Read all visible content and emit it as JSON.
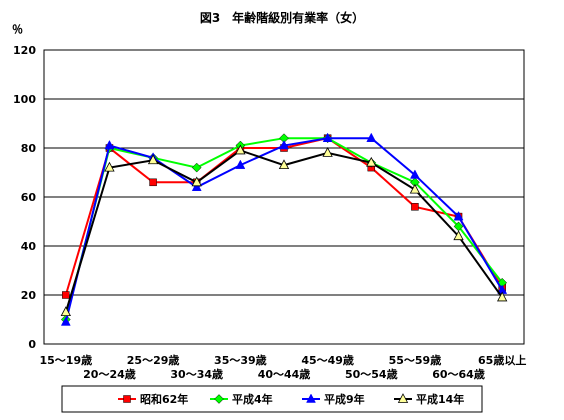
{
  "chart_data": {
    "type": "line",
    "title": "図3　年齢階級別有業率（女）",
    "ylabel": "％",
    "xlabel": "",
    "ylim": [
      0,
      120
    ],
    "yticks": [
      0,
      20,
      40,
      60,
      80,
      100,
      120
    ],
    "grid": true,
    "legend_position": "bottom",
    "categories": [
      "15～19歳",
      "20～24歳",
      "25～29歳",
      "30～34歳",
      "35～39歳",
      "40～44歳",
      "45～49歳",
      "50～54歳",
      "55～59歳",
      "60～64歳",
      "65歳以上"
    ],
    "series": [
      {
        "name": "昭和62年",
        "color": "#ff0000",
        "marker": "square",
        "values": [
          20,
          80,
          66,
          66,
          80,
          80,
          84,
          72,
          56,
          52,
          23
        ]
      },
      {
        "name": "平成4年",
        "color": "#00ff00",
        "marker": "diamond",
        "values": [
          10,
          80,
          76,
          72,
          81,
          84,
          84,
          74,
          66,
          48,
          25
        ]
      },
      {
        "name": "平成9年",
        "color": "#0000ff",
        "marker": "triangle",
        "values": [
          9,
          81,
          76,
          64,
          73,
          81,
          84,
          84,
          69,
          52,
          22
        ]
      },
      {
        "name": "平成14年",
        "color": "#000000",
        "marker": "triangle-open",
        "values": [
          13,
          72,
          75,
          66,
          79,
          73,
          78,
          74,
          63,
          44,
          19
        ]
      }
    ]
  }
}
